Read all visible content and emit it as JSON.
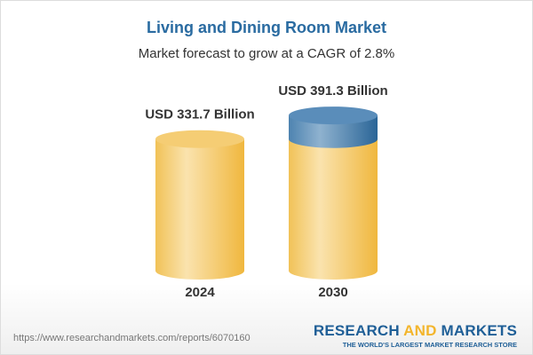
{
  "header": {
    "title": "Living and Dining Room Market",
    "subtitle": "Market forecast to grow at a CAGR of 2.8%"
  },
  "chart_data": {
    "type": "bar",
    "style": "3d-cylinder",
    "categories": [
      "2024",
      "2030"
    ],
    "values": [
      331.7,
      391.3
    ],
    "data_labels": [
      "USD 331.7 Billion",
      "USD 391.3 Billion"
    ],
    "unit": "USD Billion",
    "cagr": "2.8%",
    "grid": false,
    "colors": {
      "base": "#f3c35a",
      "growth": "#4f86b3"
    }
  },
  "footer": {
    "url": "https://www.researchandmarkets.com/reports/6070160",
    "logo_part1": "RESEARCH ",
    "logo_part2": "AND",
    "logo_part3": " MARKETS",
    "tagline": "THE WORLD'S LARGEST MARKET RESEARCH STORE"
  }
}
